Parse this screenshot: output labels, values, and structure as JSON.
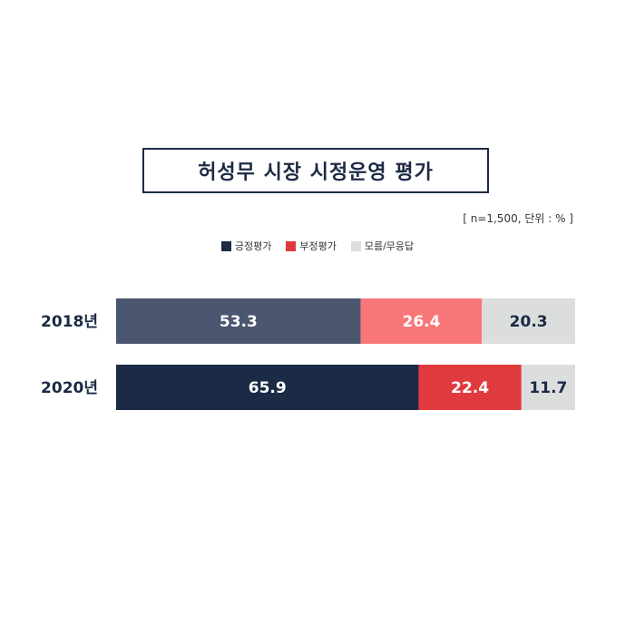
{
  "title": "허성무 시장 시정운영 평가",
  "note": "[ n=1,500, 단위 : % ]",
  "legend": [
    {
      "label": "긍정평가",
      "color": "#1b2a45"
    },
    {
      "label": "부정평가",
      "color": "#e03a3e"
    },
    {
      "label": "모름/무응답",
      "color": "#dcdedd"
    }
  ],
  "chart_data": {
    "type": "bar",
    "orientation": "horizontal",
    "stacked": true,
    "categories": [
      "2018년",
      "2020년"
    ],
    "series": [
      {
        "name": "긍정평가",
        "values": [
          53.3,
          65.9
        ]
      },
      {
        "name": "부정평가",
        "values": [
          26.4,
          22.4
        ]
      },
      {
        "name": "모름/무응답",
        "values": [
          20.3,
          11.7
        ]
      }
    ],
    "bar_colors": [
      [
        "#4b5670",
        "#f97778",
        "#dcdedd"
      ],
      [
        "#1b2a45",
        "#e03a3e",
        "#dcdedd"
      ]
    ],
    "label_colors": [
      [
        "#ffffff",
        "#ffffff",
        "#1a2a45"
      ],
      [
        "#ffffff",
        "#ffffff",
        "#1a2a45"
      ]
    ],
    "xlim": [
      0,
      100
    ],
    "title": "허성무 시장 시정운영 평가"
  }
}
